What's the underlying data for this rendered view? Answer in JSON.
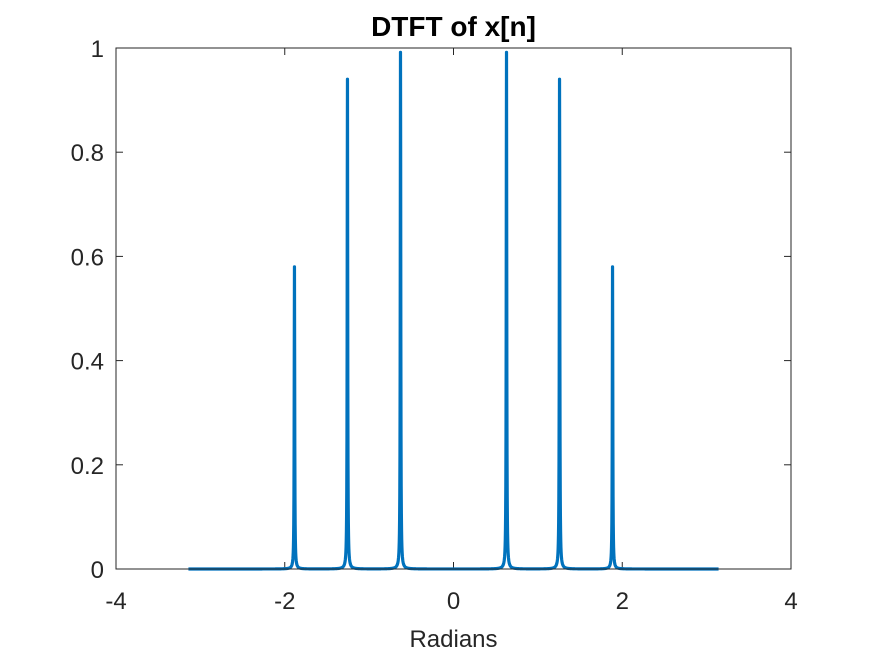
{
  "chart_data": {
    "type": "line",
    "title": "DTFT of x[n]",
    "xlabel": "Radians",
    "ylabel": "",
    "xlim": [
      -4,
      4
    ],
    "ylim": [
      0,
      1
    ],
    "xticks": [
      -4,
      -2,
      0,
      2,
      4
    ],
    "yticks": [
      0,
      0.2,
      0.4,
      0.6,
      0.8,
      1
    ],
    "xtick_labels": [
      "-4",
      "-2",
      "0",
      "2",
      "4"
    ],
    "ytick_labels": [
      "0",
      "0.2",
      "0.4",
      "0.6",
      "0.8",
      "1"
    ],
    "x_range": [
      -3.1416,
      3.1416
    ],
    "grid": false,
    "line_color": "#0072BD",
    "peaks": [
      {
        "x": -1.885,
        "y": 0.58
      },
      {
        "x": -1.257,
        "y": 0.95
      },
      {
        "x": -0.628,
        "y": 1.0
      },
      {
        "x": 0.628,
        "y": 1.0
      },
      {
        "x": 1.257,
        "y": 0.95
      },
      {
        "x": 1.885,
        "y": 0.58
      }
    ]
  }
}
